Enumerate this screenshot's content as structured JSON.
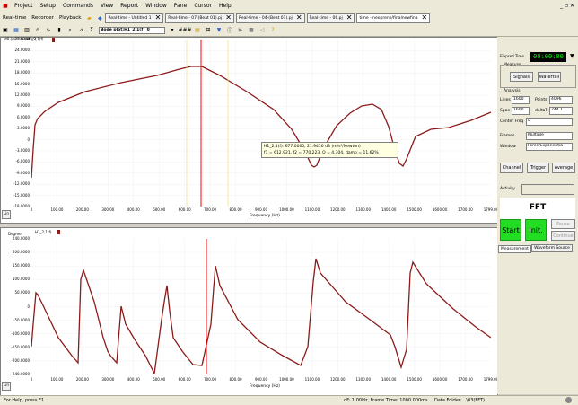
{
  "menu": [
    "Project",
    "Setup",
    "Commands",
    "View",
    "Report",
    "Window",
    "Pane",
    "Cursor",
    "Help"
  ],
  "window_controls": "_ ▫ ✕",
  "tabbar": {
    "buttons": [
      "Real-time",
      "Recorder",
      "Playback"
    ],
    "tabs": [
      "Real-time - Untitled 1",
      "Real-time - 07-(Beat 01).pj",
      "Real-time - 04-(Beat 01).pj",
      "Real-time - 06.pj",
      "time - neoprene/finalnewfina"
    ]
  },
  "toolbar": {
    "plot_select": "Bode plot:H1_2,1(f)_0",
    "ofs": "###"
  },
  "top_plot": {
    "ylabel": "dB (m/s²/Newton)",
    "series": "H1_2,1(f)",
    "yticks": [
      "27.0000",
      "24.0000",
      "21.0000",
      "18.0000",
      "15.0000",
      "12.0000",
      "9.0000",
      "6.0000",
      "3.0000",
      "0",
      "-3.0000",
      "-6.0000",
      "-9.0000",
      "-12.0000",
      "-15.0000",
      "-18.0000"
    ],
    "xticks": [
      "0",
      "100.00",
      "200.00",
      "300.00",
      "400.00",
      "500.00",
      "600.00",
      "700.00",
      "800.00",
      "900.00",
      "1000.00",
      "1100.00",
      "1200.00",
      "1300.00",
      "1400.00",
      "1500.00",
      "1600.00",
      "1700.00",
      "1799.00"
    ],
    "xlabel": "Frequency (Hz)",
    "tooltip_line1": "H1_2,1(f): 677.0000, 21.9416 dB (m/s²/Newton)",
    "tooltip_line2": "f1 = 612.921, f2 = 770.223, Q = 4.304, damp = 11.62%",
    "lin": "Lin"
  },
  "bottom_plot": {
    "ylabel": "Degree",
    "series": "H1_2,1(f)",
    "yticks": [
      "240.0000",
      "200.0000",
      "150.0000",
      "100.0000",
      "50.0000",
      "0",
      "-50.0000",
      "-100.0000",
      "-150.0000",
      "-200.0000",
      "-240.0000"
    ],
    "xticks": [
      "0",
      "100.00",
      "200.00",
      "300.00",
      "400.00",
      "500.00",
      "600.00",
      "700.00",
      "800.00",
      "900.00",
      "1000.00",
      "1100.00",
      "1200.00",
      "1300.00",
      "1400.00",
      "1500.00",
      "1600.00",
      "1700.00",
      "1799.00"
    ],
    "xlabel": "Frequency (Hz)",
    "lin": "Lin"
  },
  "right_panel": {
    "elapsed_label": "Elapsed Time",
    "elapsed_value": "00:00:00",
    "measure_label": "Measure",
    "signals_btn": "Signals",
    "waterfall_btn": "Waterfall",
    "analysis_label": "Analysis",
    "lines_label": "Lines",
    "lines_value": "1600",
    "points_label": "Points",
    "points_value": "4096",
    "span_label": "Span",
    "span_value": "1600",
    "deltat_label": "deltaT",
    "deltat_value": "244.1",
    "center_label": "Center Freq",
    "center_value": "0",
    "frames_label": "Frames",
    "frames_value": "Multiple",
    "window_label": "Window",
    "window_value": "Force/Exponentia",
    "channel_btn": "Channel",
    "trigger_btn": "Trigger",
    "average_btn": "Average",
    "activity_label": "Activity",
    "fft_label": "FFT",
    "start_btn": "Start",
    "init_btn": "Init.",
    "pause_btn": "Pause",
    "continue_btn": "Continue",
    "tab_measurement": "Measurement",
    "tab_waveform": "Waveform Source"
  },
  "status": {
    "left": "For Help, press F1",
    "mid": "dF: 1.00Hz, Frame Time: 1000.000ms",
    "right": "Data Folder: ..\\03(FFT)"
  },
  "colors": {
    "trace": "#8b1a1a",
    "cursor": "#ff0000",
    "start": "#22dd22",
    "elapsed_bg": "#000000",
    "elapsed_fg": "#00ff00",
    "tooltip_bg": "#ffffe1"
  }
}
